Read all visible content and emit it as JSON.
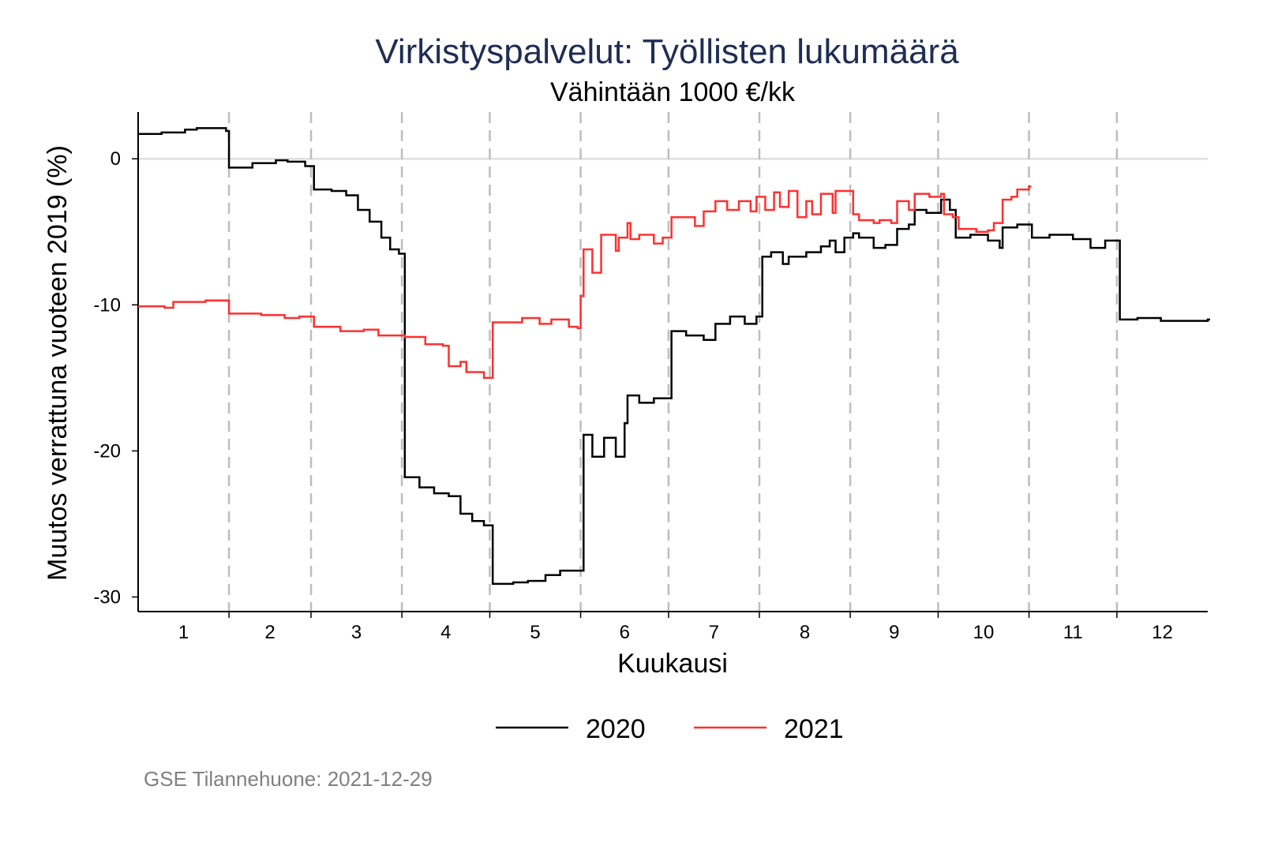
{
  "chart_data": {
    "type": "line",
    "title": "Virkistyspalvelut: Työllisten lukumäärä",
    "subtitle": "Vähintään 1000 €/kk",
    "xlabel": "Kuukausi",
    "ylabel": "Muutos verrattuna vuoteen 2019 (%)",
    "xlim": [
      0,
      365
    ],
    "ylim": [
      -31,
      3.2
    ],
    "yticks": [
      0,
      -10,
      -20,
      -30
    ],
    "ytick_labels": [
      "0",
      "-10",
      "-20",
      "-30"
    ],
    "month_labels": [
      "1",
      "2",
      "3",
      "4",
      "5",
      "6",
      "7",
      "8",
      "9",
      "10",
      "11",
      "12"
    ],
    "month_boundaries_day": [
      31,
      59,
      90,
      120,
      151,
      181,
      212,
      243,
      273,
      304,
      334
    ],
    "grid": "horizontal line at 0; dashed vertical month separators",
    "legend_position": "bottom",
    "footnote": "GSE Tilannehuone: 2021-12-29",
    "series": [
      {
        "name": "2020",
        "color": "#000000",
        "x_unit": "day of year",
        "points": [
          [
            0,
            1.7
          ],
          [
            8,
            1.8
          ],
          [
            16,
            2.0
          ],
          [
            20,
            2.1
          ],
          [
            30,
            1.9
          ],
          [
            31,
            -0.6
          ],
          [
            39,
            -0.3
          ],
          [
            47,
            -0.1
          ],
          [
            51,
            -0.2
          ],
          [
            57,
            -0.5
          ],
          [
            60,
            -2.1
          ],
          [
            66,
            -2.2
          ],
          [
            71,
            -2.5
          ],
          [
            75,
            -3.5
          ],
          [
            79,
            -4.3
          ],
          [
            83,
            -5.4
          ],
          [
            86,
            -6.2
          ],
          [
            89,
            -6.5
          ],
          [
            91,
            -21.8
          ],
          [
            96,
            -22.5
          ],
          [
            101,
            -22.9
          ],
          [
            106,
            -23.1
          ],
          [
            110,
            -24.3
          ],
          [
            114,
            -24.8
          ],
          [
            118,
            -25.1
          ],
          [
            121,
            -29.1
          ],
          [
            128,
            -29.0
          ],
          [
            133,
            -28.9
          ],
          [
            139,
            -28.5
          ],
          [
            144,
            -28.2
          ],
          [
            150,
            -28.2
          ],
          [
            152,
            -18.9
          ],
          [
            155,
            -20.4
          ],
          [
            159,
            -19.1
          ],
          [
            163,
            -20.4
          ],
          [
            166,
            -18.1
          ],
          [
            167,
            -16.2
          ],
          [
            171,
            -16.7
          ],
          [
            176,
            -16.4
          ],
          [
            182,
            -11.8
          ],
          [
            187,
            -12.1
          ],
          [
            193,
            -12.4
          ],
          [
            197,
            -11.3
          ],
          [
            202,
            -10.8
          ],
          [
            207,
            -11.3
          ],
          [
            211,
            -10.8
          ],
          [
            213,
            -6.7
          ],
          [
            216,
            -6.4
          ],
          [
            220,
            -7.2
          ],
          [
            222,
            -6.7
          ],
          [
            228,
            -6.4
          ],
          [
            233,
            -6.0
          ],
          [
            236,
            -5.6
          ],
          [
            238,
            -6.4
          ],
          [
            241,
            -5.4
          ],
          [
            244,
            -5.1
          ],
          [
            246,
            -5.4
          ],
          [
            251,
            -6.1
          ],
          [
            255,
            -5.9
          ],
          [
            259,
            -4.8
          ],
          [
            263,
            -4.5
          ],
          [
            265,
            -3.5
          ],
          [
            269,
            -3.7
          ],
          [
            274,
            -2.8
          ],
          [
            277,
            -3.5
          ],
          [
            279,
            -5.4
          ],
          [
            284,
            -5.2
          ],
          [
            290,
            -5.6
          ],
          [
            294,
            -6.1
          ],
          [
            295,
            -4.7
          ],
          [
            300,
            -4.5
          ],
          [
            305,
            -5.4
          ],
          [
            311,
            -5.2
          ],
          [
            319,
            -5.5
          ],
          [
            325,
            -6.1
          ],
          [
            330,
            -5.6
          ],
          [
            335,
            -11.0
          ],
          [
            341,
            -10.9
          ],
          [
            349,
            -11.1
          ],
          [
            357,
            -11.1
          ],
          [
            365,
            -11.0
          ]
        ]
      },
      {
        "name": "2021",
        "color": "#ff3030",
        "x_unit": "day of year",
        "points": [
          [
            0,
            -10.1
          ],
          [
            9,
            -10.2
          ],
          [
            12,
            -9.8
          ],
          [
            23,
            -9.7
          ],
          [
            30,
            -9.7
          ],
          [
            31,
            -10.6
          ],
          [
            42,
            -10.7
          ],
          [
            50,
            -10.9
          ],
          [
            55,
            -10.8
          ],
          [
            60,
            -11.5
          ],
          [
            69,
            -11.8
          ],
          [
            77,
            -11.7
          ],
          [
            82,
            -12.1
          ],
          [
            91,
            -12.2
          ],
          [
            98,
            -12.7
          ],
          [
            104,
            -12.8
          ],
          [
            106,
            -14.2
          ],
          [
            110,
            -13.9
          ],
          [
            112,
            -14.6
          ],
          [
            118,
            -15.0
          ],
          [
            121,
            -11.2
          ],
          [
            131,
            -10.9
          ],
          [
            137,
            -11.3
          ],
          [
            141,
            -11.0
          ],
          [
            147,
            -11.5
          ],
          [
            150,
            -11.6
          ],
          [
            151,
            -9.4
          ],
          [
            152,
            -6.2
          ],
          [
            155,
            -7.8
          ],
          [
            158,
            -5.2
          ],
          [
            163,
            -6.3
          ],
          [
            164,
            -5.4
          ],
          [
            167,
            -4.4
          ],
          [
            168,
            -5.5
          ],
          [
            171,
            -5.2
          ],
          [
            176,
            -5.8
          ],
          [
            179,
            -5.4
          ],
          [
            182,
            -4.0
          ],
          [
            187,
            -4.0
          ],
          [
            190,
            -4.6
          ],
          [
            193,
            -3.6
          ],
          [
            197,
            -2.9
          ],
          [
            201,
            -3.5
          ],
          [
            205,
            -2.9
          ],
          [
            209,
            -3.6
          ],
          [
            211,
            -2.6
          ],
          [
            214,
            -3.5
          ],
          [
            217,
            -2.3
          ],
          [
            219,
            -3.3
          ],
          [
            222,
            -2.2
          ],
          [
            225,
            -4.0
          ],
          [
            228,
            -2.9
          ],
          [
            230,
            -3.8
          ],
          [
            233,
            -2.4
          ],
          [
            237,
            -3.7
          ],
          [
            238,
            -2.2
          ],
          [
            244,
            -3.8
          ],
          [
            246,
            -4.2
          ],
          [
            251,
            -4.4
          ],
          [
            253,
            -4.2
          ],
          [
            257,
            -4.4
          ],
          [
            259,
            -2.9
          ],
          [
            263,
            -3.5
          ],
          [
            265,
            -2.4
          ],
          [
            270,
            -2.6
          ],
          [
            274,
            -2.4
          ],
          [
            275,
            -3.8
          ],
          [
            278,
            -4.0
          ],
          [
            280,
            -4.8
          ],
          [
            286,
            -5.0
          ],
          [
            290,
            -4.9
          ],
          [
            292,
            -4.4
          ],
          [
            295,
            -2.8
          ],
          [
            298,
            -2.6
          ],
          [
            300,
            -2.1
          ],
          [
            304,
            -1.9
          ]
        ]
      }
    ]
  }
}
